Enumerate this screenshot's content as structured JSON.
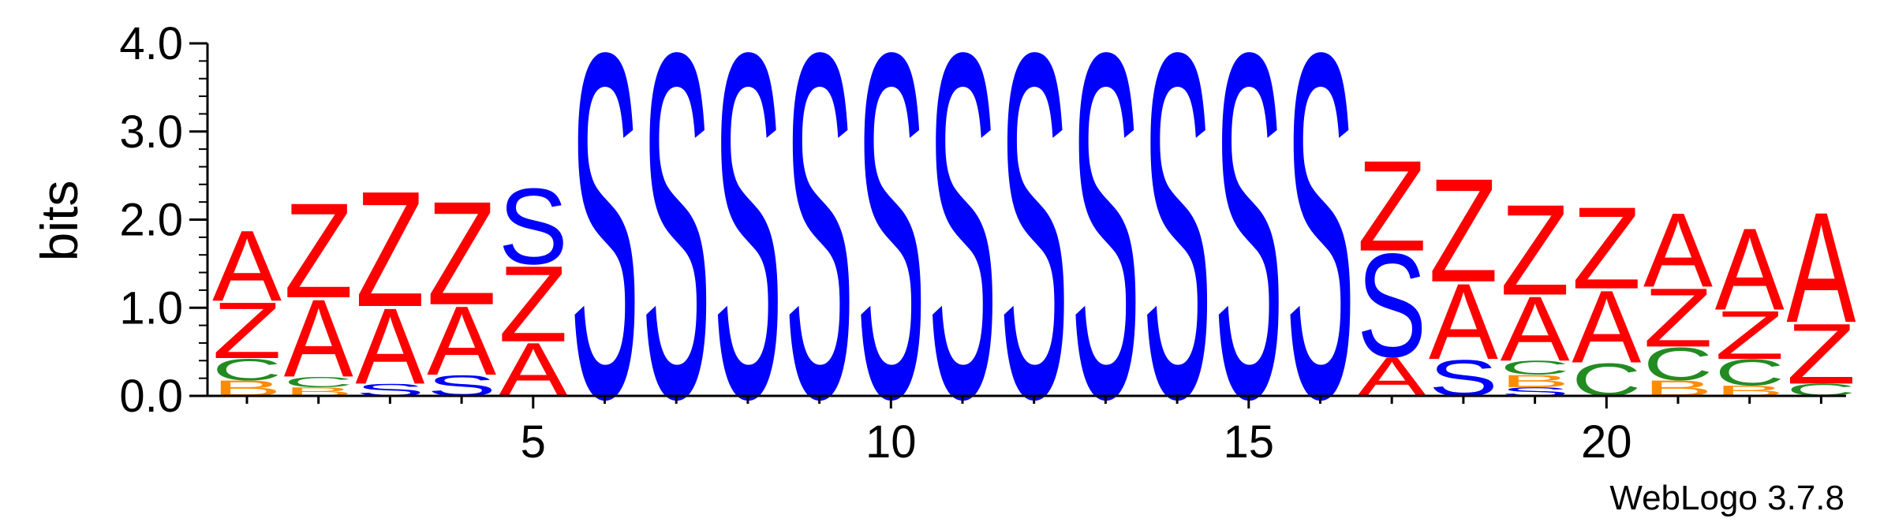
{
  "chart_data": {
    "type": "sequence-logo",
    "ylabel": "bits",
    "ylim": [
      0,
      4.0
    ],
    "y_ticks": [
      "0.0",
      "1.0",
      "2.0",
      "3.0",
      "4.0"
    ],
    "x_tick_labels": [
      "5",
      "10",
      "15",
      "20"
    ],
    "x_tick_positions": [
      5,
      10,
      15,
      20
    ],
    "positions": 23,
    "footer": "WebLogo 3.7.8",
    "colors": {
      "A": "#ff0000",
      "Z": "#ff0000",
      "S": "#0000ff",
      "C": "#228b22",
      "B": "#ff8c00"
    },
    "stacks": [
      {
        "pos": 1,
        "letters": [
          [
            "B",
            0.18
          ],
          [
            "C",
            0.25
          ],
          [
            "Z",
            0.65
          ],
          [
            "A",
            0.82
          ]
        ]
      },
      {
        "pos": 2,
        "letters": [
          [
            "B",
            0.1
          ],
          [
            "C",
            0.12
          ],
          [
            "A",
            0.9
          ],
          [
            "Z",
            1.1
          ]
        ]
      },
      {
        "pos": 3,
        "letters": [
          [
            "S",
            0.14
          ],
          [
            "A",
            0.88
          ],
          [
            "Z",
            1.34
          ]
        ]
      },
      {
        "pos": 4,
        "letters": [
          [
            "S",
            0.24
          ],
          [
            "A",
            0.8
          ],
          [
            "Z",
            1.2
          ]
        ]
      },
      {
        "pos": 5,
        "letters": [
          [
            "A",
            0.62
          ],
          [
            "Z",
            0.88
          ],
          [
            "S",
            0.88
          ]
        ]
      },
      {
        "pos": 6,
        "letters": [
          [
            "S",
            4.0
          ]
        ]
      },
      {
        "pos": 7,
        "letters": [
          [
            "S",
            4.0
          ]
        ]
      },
      {
        "pos": 8,
        "letters": [
          [
            "S",
            4.0
          ]
        ]
      },
      {
        "pos": 9,
        "letters": [
          [
            "S",
            4.0
          ]
        ]
      },
      {
        "pos": 10,
        "letters": [
          [
            "S",
            4.0
          ]
        ]
      },
      {
        "pos": 11,
        "letters": [
          [
            "S",
            4.0
          ]
        ]
      },
      {
        "pos": 12,
        "letters": [
          [
            "S",
            4.0
          ]
        ]
      },
      {
        "pos": 13,
        "letters": [
          [
            "S",
            4.0
          ]
        ]
      },
      {
        "pos": 14,
        "letters": [
          [
            "S",
            4.0
          ]
        ]
      },
      {
        "pos": 15,
        "letters": [
          [
            "S",
            4.0
          ]
        ]
      },
      {
        "pos": 16,
        "letters": [
          [
            "S",
            4.0
          ]
        ]
      },
      {
        "pos": 17,
        "letters": [
          [
            "A",
            0.45
          ],
          [
            "S",
            1.2
          ],
          [
            "Z",
            1.05
          ]
        ]
      },
      {
        "pos": 18,
        "letters": [
          [
            "S",
            0.42
          ],
          [
            "A",
            0.88
          ],
          [
            "Z",
            1.2
          ]
        ]
      },
      {
        "pos": 19,
        "letters": [
          [
            "S",
            0.1
          ],
          [
            "B",
            0.14
          ],
          [
            "C",
            0.16
          ],
          [
            "A",
            0.75
          ],
          [
            "Z",
            1.05
          ]
        ]
      },
      {
        "pos": 20,
        "letters": [
          [
            "C",
            0.38
          ],
          [
            "A",
            0.84
          ],
          [
            "Z",
            0.95
          ]
        ]
      },
      {
        "pos": 21,
        "letters": [
          [
            "B",
            0.18
          ],
          [
            "C",
            0.38
          ],
          [
            "Z",
            0.68
          ],
          [
            "A",
            0.86
          ]
        ]
      },
      {
        "pos": 22,
        "letters": [
          [
            "B",
            0.12
          ],
          [
            "C",
            0.3
          ],
          [
            "Z",
            0.56
          ],
          [
            "A",
            0.95
          ]
        ]
      },
      {
        "pos": 23,
        "letters": [
          [
            "C",
            0.14
          ],
          [
            "Z",
            0.7
          ],
          [
            "A",
            1.28
          ]
        ]
      }
    ]
  }
}
